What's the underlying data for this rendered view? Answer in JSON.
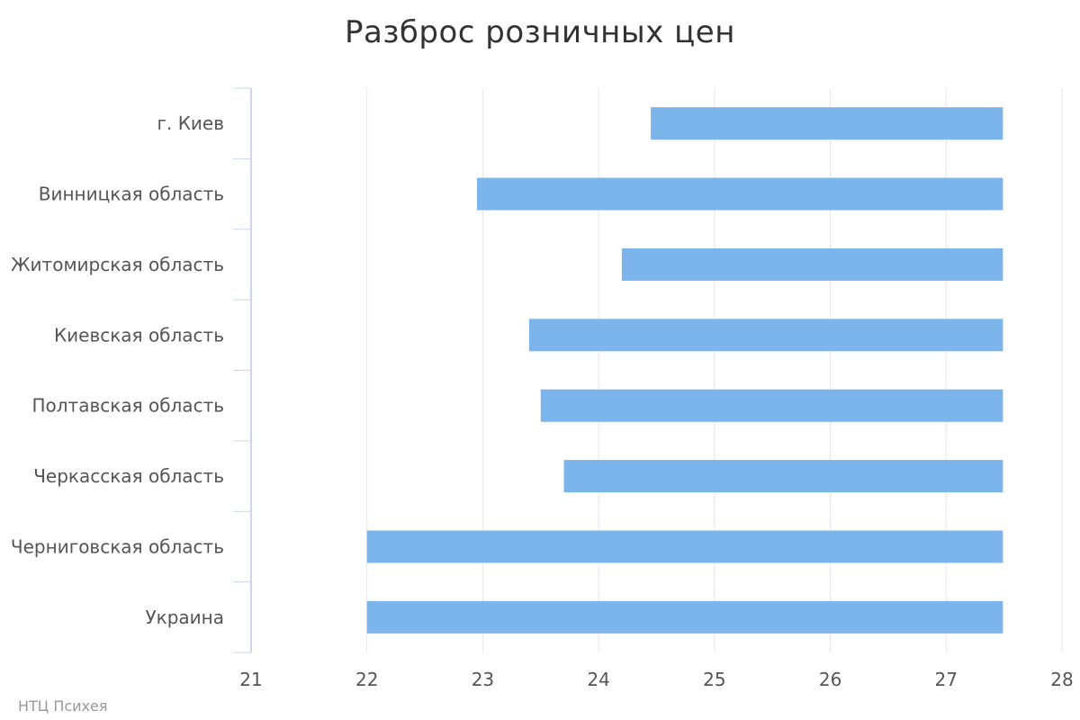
{
  "credit": "НТЦ Психея",
  "chart_data": {
    "type": "bar",
    "subtype": "floating-horizontal-range",
    "title": "Разброс розничных цен",
    "xlabel": "",
    "ylabel": "",
    "categories": [
      "г. Киев",
      "Винницкая область",
      "Житомирская область",
      "Киевская область",
      "Полтавская область",
      "Черкасская область",
      "Черниговская область",
      "Украина"
    ],
    "ranges": [
      [
        24.45,
        27.49
      ],
      [
        22.95,
        27.49
      ],
      [
        24.2,
        27.49
      ],
      [
        23.4,
        27.49
      ],
      [
        23.5,
        27.49
      ],
      [
        23.7,
        27.49
      ],
      [
        22.0,
        27.49
      ],
      [
        22.0,
        27.49
      ]
    ],
    "xlim": [
      21,
      28
    ],
    "xticks": [
      "21",
      "22",
      "23",
      "24",
      "25",
      "26",
      "27",
      "28"
    ],
    "grid": true,
    "legend": "none",
    "colors": {
      "bar": "#7cb5ec",
      "grid": "#e6e6e6",
      "axis": "#ccd6eb",
      "title": "#333333",
      "label": "#555555",
      "credit": "#999999"
    }
  }
}
